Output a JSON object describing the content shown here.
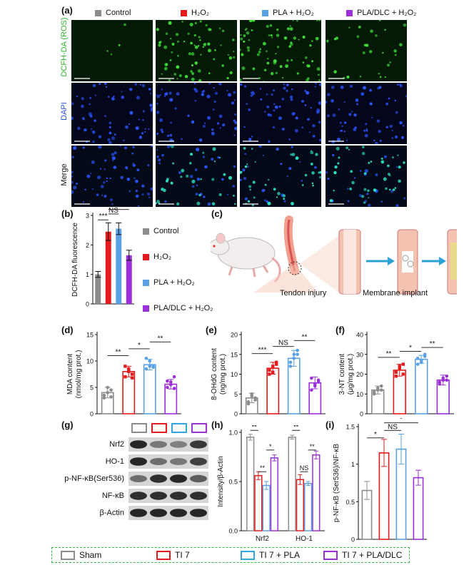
{
  "panel_a": {
    "label": "(a)",
    "groups": [
      {
        "name": "Control",
        "color": "#8c8c8c"
      },
      {
        "name": "H₂O₂",
        "color": "#e41a1c"
      },
      {
        "name": "PLA + H₂O₂",
        "color": "#5aa0e6"
      },
      {
        "name": "PLA/DLC + H₂O₂",
        "color": "#9b30d9"
      }
    ],
    "rows": [
      {
        "name": "DCFH-DA (ROS)",
        "color": "#2db82d"
      },
      {
        "name": "DAPI",
        "color": "#2b4fd9"
      },
      {
        "name": "Merge",
        "color": "#111111"
      }
    ]
  },
  "panel_b": {
    "label": "(b)"
  },
  "panel_c": {
    "label": "(c)",
    "caption_left": "Tendon injury",
    "caption_right": "Membrane implant"
  },
  "panel_d": {
    "label": "(d)"
  },
  "panel_e": {
    "label": "(e)"
  },
  "panel_f": {
    "label": "(f)"
  },
  "panel_g": {
    "label": "(g)",
    "bands": [
      "Nrf2",
      "HO-1",
      "p-NF-κB(Ser536)",
      "NF-κB",
      "β-Actin"
    ]
  },
  "panel_h": {
    "label": "(h)"
  },
  "panel_i": {
    "label": "(i)"
  },
  "bottom_legend": [
    {
      "name": "Sham",
      "color": "#8c8c8c"
    },
    {
      "name": "TI 7",
      "color": "#e41a1c"
    },
    {
      "name": "TI 7 + PLA",
      "color": "#2fa8e0"
    },
    {
      "name": "TI 7 + PLA/DLC",
      "color": "#9b30d9"
    }
  ],
  "colors": {
    "control": "#8c8c8c",
    "h2o2": "#e41a1c",
    "pla": "#5aa0e6",
    "dlc": "#9b30d9",
    "legend_border": "#3cb54a"
  },
  "chart_data": [
    {
      "id": "b",
      "type": "bar",
      "categories": [
        "Control",
        "H₂O₂",
        "PLA + H₂O₂",
        "PLA/DLC + H₂O₂"
      ],
      "values": [
        1.0,
        2.45,
        2.55,
        1.65
      ],
      "errors": [
        0.1,
        0.3,
        0.2,
        0.17
      ],
      "ylabel": "DCFH-DA fluorescence",
      "ylim": [
        0,
        3
      ],
      "yticks": [
        0,
        1,
        2,
        3
      ],
      "significance": [
        "***",
        "NS",
        "*"
      ]
    },
    {
      "id": "d",
      "type": "bar",
      "categories": [
        "Sham",
        "TI 7",
        "TI 7 + PLA",
        "TI 7 + PLA/DLC"
      ],
      "values": [
        4.0,
        8.0,
        9.3,
        5.6
      ],
      "errors": [
        1.0,
        1.0,
        1.0,
        0.9
      ],
      "points": [
        [
          3,
          4,
          4.5,
          3.5,
          5,
          3.2
        ],
        [
          7,
          8.5,
          7.5,
          9,
          8,
          6.8
        ],
        [
          8.5,
          10,
          9,
          10.5,
          9,
          8.8
        ],
        [
          5,
          6,
          4.8,
          6.2,
          5.5,
          7
        ]
      ],
      "ylabel": "MDA content\n(nmol/mg prot.)",
      "ylim": [
        0,
        15
      ],
      "yticks": [
        0,
        5,
        10,
        15
      ],
      "significance": [
        "**",
        "*",
        "**"
      ]
    },
    {
      "id": "e",
      "type": "bar",
      "categories": [
        "Sham",
        "TI 7",
        "TI 7 + PLA",
        "TI 7 + PLA/DLC"
      ],
      "values": [
        4.0,
        11.5,
        14.0,
        7.8
      ],
      "errors": [
        1.2,
        1.5,
        2.0,
        1.5
      ],
      "points": [
        [
          3,
          5,
          4,
          2.5,
          4.5,
          3.5
        ],
        [
          10,
          12,
          13,
          11,
          10.5,
          12.5
        ],
        [
          12,
          15,
          16,
          13,
          14,
          15
        ],
        [
          6,
          7,
          8.5,
          9,
          7.5,
          8
        ]
      ],
      "ylabel": "8-OHdG content\n(ng/mg prot.)",
      "ylim": [
        0,
        20
      ],
      "yticks": [
        0,
        5,
        10,
        15,
        20
      ],
      "significance": [
        "***",
        "NS",
        "**"
      ]
    },
    {
      "id": "f",
      "type": "bar",
      "categories": [
        "Sham",
        "TI 7",
        "TI 7 + PLA",
        "TI 7 + PLA/DLC"
      ],
      "values": [
        12.0,
        22.0,
        27.5,
        17.0
      ],
      "errors": [
        2.0,
        3.0,
        2.0,
        2.5
      ],
      "points": [
        [
          10,
          12,
          14,
          11,
          13,
          12
        ],
        [
          19,
          23,
          25,
          21,
          24,
          20
        ],
        [
          25,
          27,
          30,
          28,
          26,
          29
        ],
        [
          15,
          17,
          19,
          16,
          18,
          17
        ]
      ],
      "ylabel": "3-NT content\n(μg/mg prot.)",
      "ylim": [
        0,
        40
      ],
      "yticks": [
        0,
        10,
        20,
        30,
        40
      ],
      "significance": [
        "**",
        "*",
        "**"
      ]
    },
    {
      "id": "h",
      "type": "bar",
      "categories": [
        "Nrf2",
        "HO-1"
      ],
      "series": [
        {
          "name": "Sham",
          "values": [
            0.95,
            0.95
          ],
          "errors": [
            0.03,
            0.02
          ]
        },
        {
          "name": "TI 7",
          "values": [
            0.56,
            0.52
          ],
          "errors": [
            0.04,
            0.05
          ]
        },
        {
          "name": "TI 7 + PLA",
          "values": [
            0.46,
            0.48
          ],
          "errors": [
            0.04,
            0.02
          ]
        },
        {
          "name": "TI 7 + PLA/DLC",
          "values": [
            0.74,
            0.77
          ],
          "errors": [
            0.03,
            0.04
          ]
        }
      ],
      "ylabel": "Intensity/β-Actin",
      "ylim": [
        0,
        1.0
      ],
      "yticks": [
        0,
        0.5,
        1.0
      ],
      "significance": [
        "**",
        "**",
        "*",
        "**",
        "NS",
        "**"
      ]
    },
    {
      "id": "i",
      "type": "bar",
      "categories": [
        "Sham",
        "TI 7",
        "TI 7 + PLA",
        "TI 7 + PLA/DLC"
      ],
      "values": [
        0.65,
        1.15,
        1.2,
        0.82
      ],
      "errors": [
        0.12,
        0.18,
        0.2,
        0.1
      ],
      "ylabel": "p-NF-κB (Ser536)/NF-κB",
      "ylim": [
        0,
        1.5
      ],
      "yticks": [
        0,
        0.5,
        1.0,
        1.5
      ],
      "significance": [
        "*",
        "NS",
        "*"
      ]
    }
  ]
}
